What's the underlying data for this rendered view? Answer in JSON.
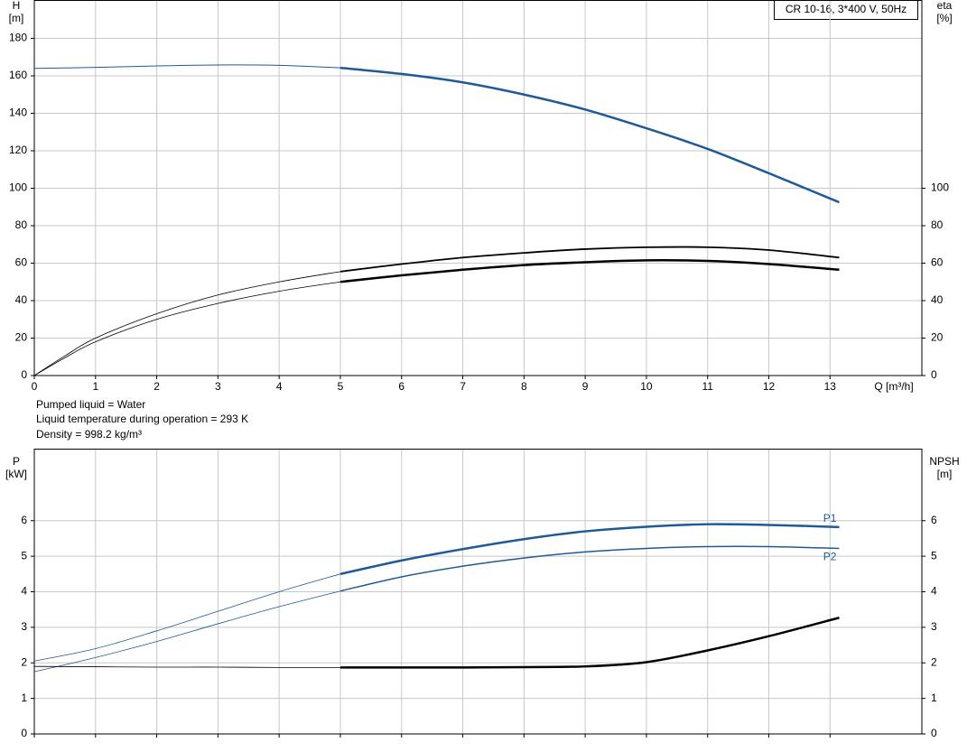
{
  "chart_data": [
    {
      "type": "line",
      "box_label": "CR 10-16, 3*400 V, 50Hz",
      "ylabel": [
        "H",
        "[m]"
      ],
      "y2label": [
        "eta",
        "[%]"
      ],
      "xlabel": "Q [m³/h]",
      "xlim": [
        0,
        14.5
      ],
      "xticks": [
        0,
        1,
        2,
        3,
        4,
        5,
        6,
        7,
        8,
        9,
        10,
        11,
        12,
        13
      ],
      "ylim": [
        0,
        200
      ],
      "yticks": [
        0,
        20,
        40,
        60,
        80,
        100,
        120,
        140,
        160,
        180
      ],
      "y2lim": [
        0,
        200
      ],
      "y2ticks": [
        0,
        20,
        40,
        60,
        80,
        100
      ],
      "grid": true,
      "series": [
        {
          "color": "#1f5a96",
          "line_width": 1,
          "x": [
            0,
            1,
            2,
            3,
            4,
            5
          ],
          "values": [
            164,
            164.5,
            165.3,
            165.8,
            165.6,
            164.3
          ]
        },
        {
          "color": "#1f5a96",
          "line_width": 2.5,
          "x": [
            5,
            6,
            7,
            8,
            9,
            10,
            11,
            12,
            13.15
          ],
          "values": [
            164.3,
            161,
            156.5,
            150,
            142,
            132,
            121,
            108,
            92.5
          ]
        },
        {
          "color": "#000000",
          "line_width": 0.8,
          "axis": "y2",
          "x": [
            0,
            0.5,
            1,
            2,
            3,
            4,
            5
          ],
          "values": [
            0,
            10.5,
            20,
            33,
            43,
            50,
            55.5
          ]
        },
        {
          "color": "#000000",
          "line_width": 1.8,
          "axis": "y2",
          "x": [
            5,
            6,
            7,
            8,
            9,
            10,
            11,
            12,
            13.15
          ],
          "values": [
            55.5,
            59.5,
            63,
            65.5,
            67.5,
            68.5,
            68.5,
            67,
            63
          ]
        },
        {
          "color": "#000000",
          "line_width": 0.8,
          "axis": "y2",
          "x": [
            0,
            0.5,
            1,
            2,
            3,
            4,
            5
          ],
          "values": [
            0,
            9.5,
            18,
            30,
            38.5,
            45,
            50
          ]
        },
        {
          "color": "#000000",
          "line_width": 2.5,
          "axis": "y2",
          "x": [
            5,
            6,
            7,
            8,
            9,
            10,
            11,
            12,
            13.15
          ],
          "values": [
            50,
            53.5,
            56.5,
            59,
            60.5,
            61.5,
            61.2,
            59.5,
            56.5
          ]
        }
      ]
    },
    {
      "type": "line",
      "ylabel": [
        "P",
        "[kW]"
      ],
      "y2label": [
        "NPSH",
        "[m]"
      ],
      "xlim": [
        0,
        14.5
      ],
      "ylim": [
        0,
        8
      ],
      "yticks": [
        0,
        1,
        2,
        3,
        4,
        5,
        6
      ],
      "y2lim": [
        0,
        8
      ],
      "y2ticks": [
        0,
        1,
        2,
        3,
        4,
        5,
        6
      ],
      "grid": true,
      "series": [
        {
          "color": "#1f5a96",
          "line_width": 0.8,
          "x": [
            0,
            1,
            2,
            3,
            4,
            5
          ],
          "values": [
            2.05,
            2.4,
            2.9,
            3.45,
            4.0,
            4.5
          ]
        },
        {
          "name": "P1",
          "label_position": "above",
          "color": "#1f5a96",
          "line_width": 2.5,
          "x": [
            5,
            6,
            7,
            8,
            9,
            10,
            11,
            12,
            13.15
          ],
          "values": [
            4.5,
            4.88,
            5.2,
            5.48,
            5.7,
            5.83,
            5.9,
            5.88,
            5.82
          ]
        },
        {
          "color": "#1f5a96",
          "line_width": 0.8,
          "x": [
            0,
            1,
            2,
            3,
            4,
            5
          ],
          "values": [
            1.75,
            2.15,
            2.6,
            3.1,
            3.58,
            4.02
          ]
        },
        {
          "name": "P2",
          "label_position": "below",
          "color": "#1f5a96",
          "line_width": 1.5,
          "x": [
            5,
            6,
            7,
            8,
            9,
            10,
            11,
            12,
            13.15
          ],
          "values": [
            4.02,
            4.42,
            4.72,
            4.95,
            5.12,
            5.22,
            5.27,
            5.27,
            5.22
          ]
        },
        {
          "color": "#000000",
          "line_width": 0.8,
          "axis": "y2",
          "x": [
            0,
            1,
            2,
            3,
            4,
            5
          ],
          "values": [
            1.9,
            1.89,
            1.88,
            1.88,
            1.87,
            1.87
          ]
        },
        {
          "color": "#000000",
          "line_width": 2.5,
          "axis": "y2",
          "x": [
            5,
            6,
            7,
            8,
            9,
            10,
            11,
            12,
            13.15
          ],
          "values": [
            1.87,
            1.87,
            1.87,
            1.88,
            1.9,
            2.02,
            2.35,
            2.75,
            3.27
          ]
        }
      ]
    }
  ],
  "notes": [
    "Pumped liquid = Water",
    "Liquid temperature during operation = 293 K",
    "Density = 998.2 kg/m³"
  ]
}
